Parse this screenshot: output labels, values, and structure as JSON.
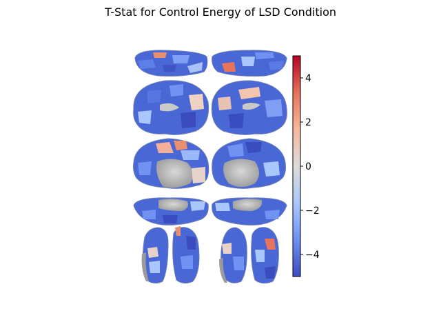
{
  "title": "T-Stat for Control Energy of LSD Condition",
  "colorbar": {
    "min": -5,
    "max": 5,
    "ticks": [
      {
        "value": 4,
        "label": "4"
      },
      {
        "value": 2,
        "label": "2"
      },
      {
        "value": 0,
        "label": "0"
      },
      {
        "value": -2,
        "label": "−2"
      },
      {
        "value": -4,
        "label": "−4"
      }
    ],
    "colormap": "coolwarm",
    "colors": [
      "#3b4cc0",
      "#6f92f3",
      "#aac7fd",
      "#dddcdc",
      "#f7b89c",
      "#e7745b",
      "#b40426"
    ]
  },
  "views": [
    {
      "name": "dorsal"
    },
    {
      "name": "lateral"
    },
    {
      "name": "medial"
    },
    {
      "name": "ventral"
    },
    {
      "name": "anterior-posterior"
    }
  ]
}
